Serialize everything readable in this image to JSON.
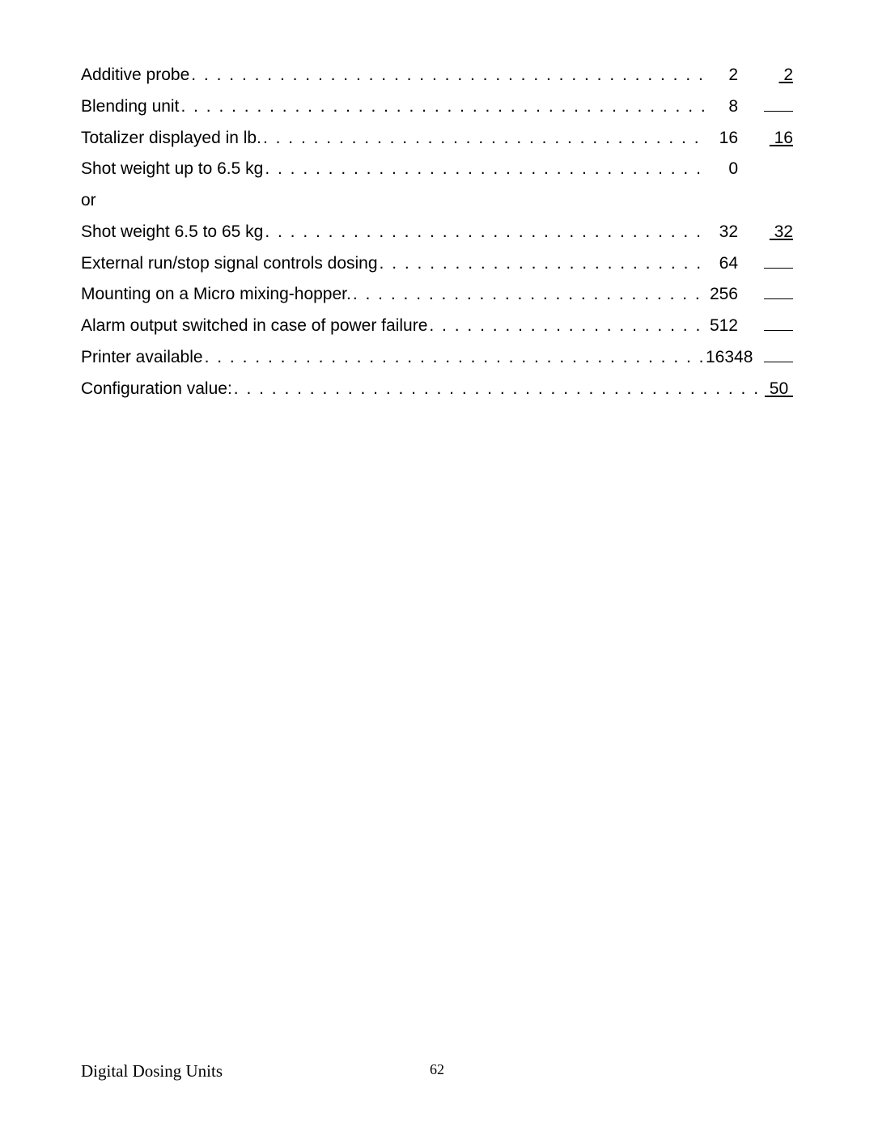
{
  "rows": [
    {
      "label": "Additive probe",
      "ref": "2",
      "second": "2",
      "secondType": "underline"
    },
    {
      "label": "Blending unit",
      "ref": "8",
      "second": "",
      "secondType": "blank"
    },
    {
      "label": "Totalizer displayed in lb.",
      "ref": "16",
      "second": "16",
      "secondType": "underline"
    },
    {
      "label": "Shot weight up to 6.5 kg",
      "ref": "0",
      "second": "",
      "secondType": "none"
    },
    {
      "type": "or",
      "text": "or"
    },
    {
      "label": "Shot weight 6.5 to 65 kg",
      "ref": "32",
      "second": "32",
      "secondType": "underline"
    },
    {
      "label": "External run/stop signal controls dosing",
      "ref": "64",
      "second": "",
      "secondType": "blank"
    },
    {
      "label": "Mounting on a Micro mixing-hopper.",
      "ref": "256",
      "second": "",
      "secondType": "blank"
    },
    {
      "label": "Alarm output switched in case of power failure",
      "ref": "512",
      "second": "",
      "secondType": "blank"
    },
    {
      "label": "Printer available",
      "ref": "16348",
      "second": "",
      "secondType": "blank"
    },
    {
      "label": "Configuration value:",
      "ref": "",
      "second": "50",
      "secondType": "underline",
      "secondAtRef": true
    }
  ],
  "dots": ". . . . . . . . . . . . . . . . . . . . . . . . . . . . . . . . . . . . . . . . . . . . . . . . . . . . . . . . . . . . . . . . . . . . . . . . . . . . . . . .",
  "footer": {
    "title": "Digital Dosing Units",
    "page": "62"
  }
}
